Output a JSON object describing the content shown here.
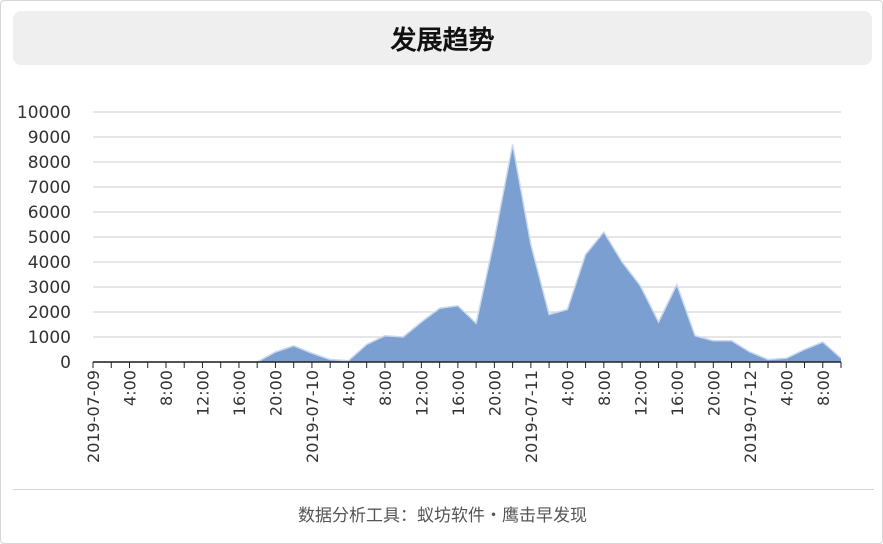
{
  "title": "发展趋势",
  "footer": "数据分析工具：蚁坊软件・鹰击早发现",
  "colors": {
    "area": "#7a9fd0",
    "line": "#c9d8ee",
    "grid": "#cccccc",
    "axis": "#222222"
  },
  "chart_data": {
    "type": "area",
    "title": "发展趋势",
    "xlabel": "",
    "ylabel": "",
    "ylim": [
      0,
      10000
    ],
    "yticks": [
      "0",
      "1000",
      "2000",
      "3000",
      "4000",
      "5000",
      "6000",
      "7000",
      "8000",
      "9000",
      "10000"
    ],
    "x_tick_labels": [
      {
        "i": 0,
        "label": "2019-07-09"
      },
      {
        "i": 2,
        "label": "4:00"
      },
      {
        "i": 4,
        "label": "8:00"
      },
      {
        "i": 6,
        "label": "12:00"
      },
      {
        "i": 8,
        "label": "16:00"
      },
      {
        "i": 10,
        "label": "20:00"
      },
      {
        "i": 12,
        "label": "2019-07-10"
      },
      {
        "i": 14,
        "label": "4:00"
      },
      {
        "i": 16,
        "label": "8:00"
      },
      {
        "i": 18,
        "label": "12:00"
      },
      {
        "i": 20,
        "label": "16:00"
      },
      {
        "i": 22,
        "label": "20:00"
      },
      {
        "i": 24,
        "label": "2019-07-11"
      },
      {
        "i": 26,
        "label": "4:00"
      },
      {
        "i": 28,
        "label": "8:00"
      },
      {
        "i": 30,
        "label": "12:00"
      },
      {
        "i": 32,
        "label": "16:00"
      },
      {
        "i": 34,
        "label": "20:00"
      },
      {
        "i": 36,
        "label": "2019-07-12"
      },
      {
        "i": 38,
        "label": "4:00"
      },
      {
        "i": 40,
        "label": "8:00"
      }
    ],
    "grid": true,
    "legend": "none",
    "values": [
      0,
      0,
      0,
      0,
      0,
      0,
      0,
      0,
      0,
      0,
      400,
      650,
      350,
      100,
      50,
      700,
      1050,
      1000,
      1600,
      2150,
      2250,
      1550,
      4900,
      8700,
      4700,
      1900,
      2100,
      4300,
      5200,
      4000,
      3050,
      1600,
      3100,
      1050,
      850,
      850,
      400,
      100,
      150,
      500,
      800,
      150
    ]
  }
}
